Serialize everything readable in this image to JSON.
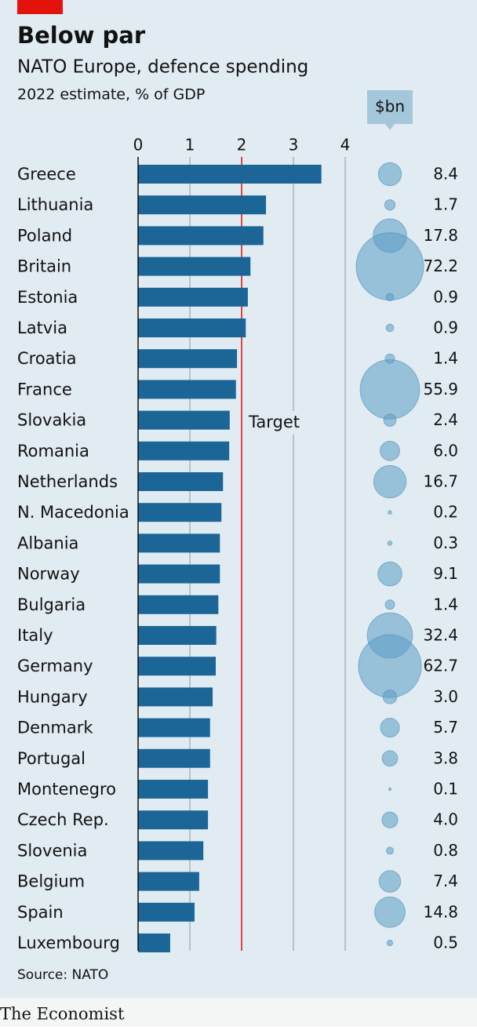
{
  "header": {
    "title": "Below par",
    "subtitle": "NATO Europe, defence spending",
    "unit": "2022 estimate, % of GDP"
  },
  "chart_data": {
    "type": "bar",
    "orientation": "horizontal",
    "categories": [
      "Greece",
      "Lithuania",
      "Poland",
      "Britain",
      "Estonia",
      "Latvia",
      "Croatia",
      "France",
      "Slovakia",
      "Romania",
      "Netherlands",
      "N. Macedonia",
      "Albania",
      "Norway",
      "Bulgaria",
      "Italy",
      "Germany",
      "Hungary",
      "Denmark",
      "Portugal",
      "Montenegro",
      "Czech Rep.",
      "Slovenia",
      "Belgium",
      "Spain",
      "Luxembourg"
    ],
    "values": [
      3.54,
      2.47,
      2.42,
      2.17,
      2.12,
      2.08,
      1.91,
      1.89,
      1.77,
      1.76,
      1.64,
      1.61,
      1.58,
      1.58,
      1.55,
      1.51,
      1.5,
      1.44,
      1.39,
      1.39,
      1.35,
      1.35,
      1.26,
      1.18,
      1.09,
      0.62
    ],
    "color": "#1c6597",
    "xlim": [
      0,
      4
    ],
    "xticks": [
      0,
      1,
      2,
      3,
      4
    ],
    "grid": true,
    "target": {
      "value": 2,
      "label": "Target",
      "color": "#e3120b"
    },
    "bubbles": {
      "name": "$bn",
      "color": "#5b9cc4",
      "values": [
        8.4,
        1.7,
        17.8,
        72.2,
        0.9,
        0.9,
        1.4,
        55.9,
        2.4,
        6.0,
        16.7,
        0.2,
        0.3,
        9.1,
        1.4,
        32.4,
        62.7,
        3.0,
        5.7,
        3.8,
        0.1,
        4.0,
        0.8,
        7.4,
        14.8,
        0.5
      ],
      "value_labels": [
        "8.4",
        "1.7",
        "17.8",
        "72.2",
        "0.9",
        "0.9",
        "1.4",
        "55.9",
        "2.4",
        "6.0",
        "16.7",
        "0.2",
        "0.3",
        "9.1",
        "1.4",
        "32.4",
        "62.7",
        "3.0",
        "5.7",
        "3.8",
        "0.1",
        "4.0",
        "0.8",
        "7.4",
        "14.8",
        "0.5"
      ]
    }
  },
  "footer": {
    "source": "Source: NATO",
    "brand": "The Economist"
  }
}
